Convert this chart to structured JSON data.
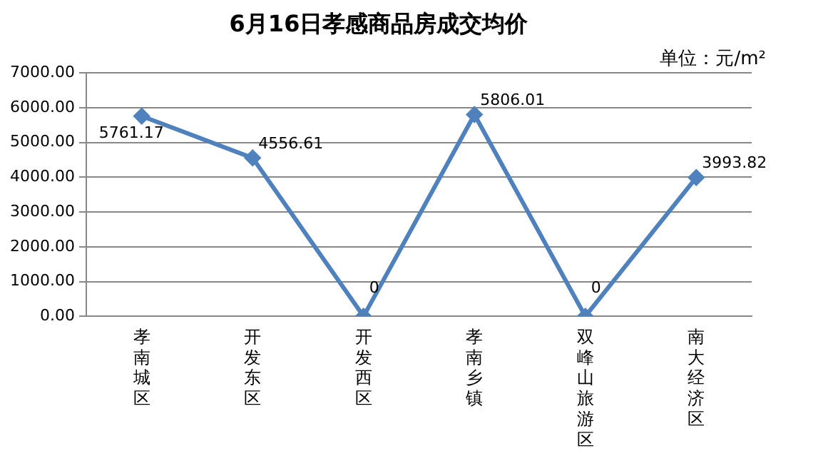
{
  "chart_data": {
    "type": "line",
    "title": "6月16日孝感商品房成交均价",
    "annotations": [
      "单位：元/m²"
    ],
    "categories": [
      "孝南城区",
      "开发东区",
      "开发西区",
      "孝南乡镇",
      "双峰山旅游区",
      "南大经济区"
    ],
    "series": [
      {
        "color": "#4f81bd",
        "values": [
          5761.17,
          4556.61,
          0,
          5806.01,
          0,
          3993.82
        ]
      }
    ],
    "ylim": [
      0,
      7000
    ],
    "yticks": [
      {
        "value": 0,
        "label": "0.00"
      },
      {
        "value": 1000,
        "label": "1000.00"
      },
      {
        "value": 2000,
        "label": "2000.00"
      },
      {
        "value": 3000,
        "label": "3000.00"
      },
      {
        "value": 4000,
        "label": "4000.00"
      },
      {
        "value": 5000,
        "label": "5000.00"
      },
      {
        "value": 6000,
        "label": "6000.00"
      },
      {
        "value": 7000,
        "label": "7000.00"
      }
    ],
    "grid": "y",
    "legend": false,
    "marker": "diamond",
    "line_style": "solid",
    "data_labels": true
  }
}
